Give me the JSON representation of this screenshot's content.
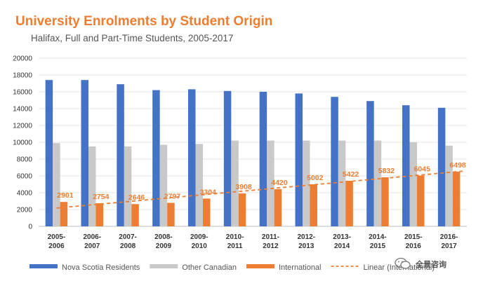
{
  "chart_data": {
    "type": "bar",
    "title": "University Enrolments by Student Origin",
    "subtitle": "Halifax, Full and Part-Time Students, 2005-2017",
    "categories": [
      "2005-2006",
      "2006-2007",
      "2007-2008",
      "2008-2009",
      "2009-2010",
      "2010-2011",
      "2011-2012",
      "2012-2013",
      "2013-2014",
      "2014-2015",
      "2015-2016",
      "2016-2017"
    ],
    "category_lines": [
      [
        "2005-",
        "2006"
      ],
      [
        "2006-",
        "2007"
      ],
      [
        "2007-",
        "2008"
      ],
      [
        "2008-",
        "2009"
      ],
      [
        "2009-",
        "2010"
      ],
      [
        "2010-",
        "2011"
      ],
      [
        "2011-",
        "2012"
      ],
      [
        "2012-",
        "2013"
      ],
      [
        "2013-",
        "2014"
      ],
      [
        "2014-",
        "2015"
      ],
      [
        "2015-",
        "2016"
      ],
      [
        "2016-",
        "2017"
      ]
    ],
    "series": [
      {
        "name": "Nova Scotia Residents",
        "color": "#4472c4",
        "values": [
          17400,
          17400,
          16900,
          16200,
          16300,
          16100,
          16000,
          15800,
          15400,
          14900,
          14400,
          14100
        ]
      },
      {
        "name": "Other Canadian",
        "color": "#c9c9c9",
        "values": [
          9900,
          9500,
          9500,
          9700,
          9800,
          10200,
          10200,
          10200,
          10200,
          10200,
          10000,
          9600
        ]
      },
      {
        "name": "International",
        "color": "#ed7d31",
        "values": [
          2901,
          2754,
          2646,
          2797,
          3304,
          3908,
          4420,
          5002,
          5422,
          5832,
          6045,
          6498
        ],
        "data_labels": true
      }
    ],
    "trendline": {
      "name": "Linear (International)",
      "type": "linear",
      "of_series": "International",
      "style": "dashed",
      "color": "#ed7d31"
    },
    "ylim": [
      0,
      20000
    ],
    "yticks": [
      0,
      2000,
      4000,
      6000,
      8000,
      10000,
      12000,
      14000,
      16000,
      18000,
      20000
    ],
    "grid": true,
    "legend": "bottom",
    "xlabel": "",
    "ylabel": ""
  },
  "watermark": {
    "text": "全景咨询",
    "icon": "wechat-icon"
  }
}
